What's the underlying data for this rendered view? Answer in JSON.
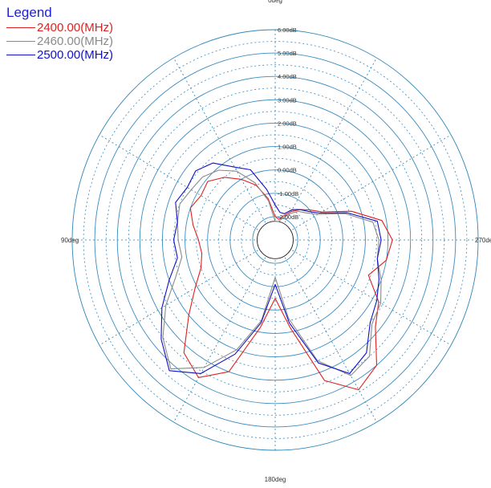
{
  "chart_data": {
    "type": "polar-line",
    "title": "",
    "legend": {
      "title": "Legend",
      "position": "top-left",
      "entries": [
        {
          "label": "2400.00(MHz)",
          "color": "#e02020"
        },
        {
          "label": "2460.00(MHz)",
          "color": "#8a8a8a"
        },
        {
          "label": "2500.00(MHz)",
          "color": "#1010c8"
        }
      ]
    },
    "angle_labels": [
      {
        "deg": 0,
        "label": "0deg"
      },
      {
        "deg": 90,
        "label": "90deg"
      },
      {
        "deg": 180,
        "label": "180deg"
      },
      {
        "deg": 270,
        "label": "270de"
      }
    ],
    "radial_axis": {
      "unit": "dB",
      "range": [
        -3,
        6
      ],
      "ticks": [
        -2,
        -1,
        0,
        1,
        2,
        3,
        4,
        5,
        6
      ],
      "tick_labels": [
        "-2.00dB",
        "-1.00dB",
        "0.00dB",
        "1.00dB",
        "2.00dB",
        "3.00dB",
        "4.00dB",
        "5.00dB",
        "6.00dB"
      ]
    },
    "grid": true,
    "series": [
      {
        "name": "2400.00(MHz)",
        "color": "#e02020",
        "points": [
          [
            0,
            -2.0
          ],
          [
            10,
            -1.2
          ],
          [
            20,
            -0.5
          ],
          [
            30,
            0.0
          ],
          [
            40,
            0.5
          ],
          [
            50,
            0.9
          ],
          [
            60,
            0.8
          ],
          [
            70,
            1.0
          ],
          [
            80,
            0.7
          ],
          [
            90,
            0.4
          ],
          [
            100,
            0.3
          ],
          [
            110,
            0.5
          ],
          [
            120,
            1.1
          ],
          [
            130,
            2.0
          ],
          [
            140,
            3.3
          ],
          [
            150,
            3.8
          ],
          [
            160,
            3.0
          ],
          [
            170,
            0.8
          ],
          [
            180,
            -0.5
          ],
          [
            190,
            0.8
          ],
          [
            200,
            3.4
          ],
          [
            210,
            4.4
          ],
          [
            220,
            4.0
          ],
          [
            230,
            2.8
          ],
          [
            240,
            2.3
          ],
          [
            250,
            1.4
          ],
          [
            260,
            2.0
          ],
          [
            270,
            2.2
          ],
          [
            280,
            1.8
          ],
          [
            290,
            0.6
          ],
          [
            300,
            -0.6
          ],
          [
            310,
            -1.0
          ],
          [
            320,
            -1.3
          ],
          [
            330,
            -1.6
          ],
          [
            340,
            -1.9
          ],
          [
            350,
            -2.1
          ]
        ]
      },
      {
        "name": "2460.00(MHz)",
        "color": "#8a8a8a",
        "points": [
          [
            0,
            -2.2
          ],
          [
            10,
            -1.3
          ],
          [
            20,
            -0.4
          ],
          [
            30,
            0.4
          ],
          [
            40,
            0.9
          ],
          [
            50,
            1.2
          ],
          [
            60,
            1.3
          ],
          [
            70,
            1.5
          ],
          [
            80,
            1.4
          ],
          [
            90,
            1.3
          ],
          [
            100,
            1.2
          ],
          [
            110,
            1.7
          ],
          [
            120,
            2.6
          ],
          [
            130,
            3.5
          ],
          [
            140,
            4.2
          ],
          [
            150,
            3.3
          ],
          [
            160,
            2.0
          ],
          [
            170,
            0.5
          ],
          [
            180,
            -1.4
          ],
          [
            190,
            0.4
          ],
          [
            200,
            2.5
          ],
          [
            210,
            3.7
          ],
          [
            220,
            3.5
          ],
          [
            230,
            2.6
          ],
          [
            240,
            2.4
          ],
          [
            250,
            2.0
          ],
          [
            260,
            1.6
          ],
          [
            270,
            1.6
          ],
          [
            280,
            1.4
          ],
          [
            290,
            0.3
          ],
          [
            300,
            -0.8
          ],
          [
            310,
            -1.2
          ],
          [
            320,
            -1.4
          ],
          [
            330,
            -1.7
          ],
          [
            340,
            -2.0
          ],
          [
            350,
            -2.2
          ]
        ]
      },
      {
        "name": "2500.00(MHz)",
        "color": "#1010c8",
        "points": [
          [
            0,
            -1.5
          ],
          [
            10,
            -0.8
          ],
          [
            20,
            0.2
          ],
          [
            30,
            0.6
          ],
          [
            40,
            1.3
          ],
          [
            50,
            1.6
          ],
          [
            60,
            1.5
          ],
          [
            70,
            1.7
          ],
          [
            80,
            1.4
          ],
          [
            90,
            1.5
          ],
          [
            100,
            1.4
          ],
          [
            110,
            2.0
          ],
          [
            120,
            2.8
          ],
          [
            130,
            3.6
          ],
          [
            140,
            4.3
          ],
          [
            150,
            3.6
          ],
          [
            160,
            2.2
          ],
          [
            170,
            0.6
          ],
          [
            180,
            -1.1
          ],
          [
            190,
            0.6
          ],
          [
            200,
            2.6
          ],
          [
            210,
            3.6
          ],
          [
            220,
            3.3
          ],
          [
            230,
            2.5
          ],
          [
            240,
            2.2
          ],
          [
            250,
            1.9
          ],
          [
            260,
            1.6
          ],
          [
            270,
            1.7
          ],
          [
            280,
            1.6
          ],
          [
            290,
            0.4
          ],
          [
            300,
            -0.7
          ],
          [
            310,
            -1.1
          ],
          [
            320,
            -1.3
          ],
          [
            330,
            -1.5
          ],
          [
            340,
            -1.8
          ],
          [
            350,
            -1.8
          ]
        ]
      }
    ]
  }
}
